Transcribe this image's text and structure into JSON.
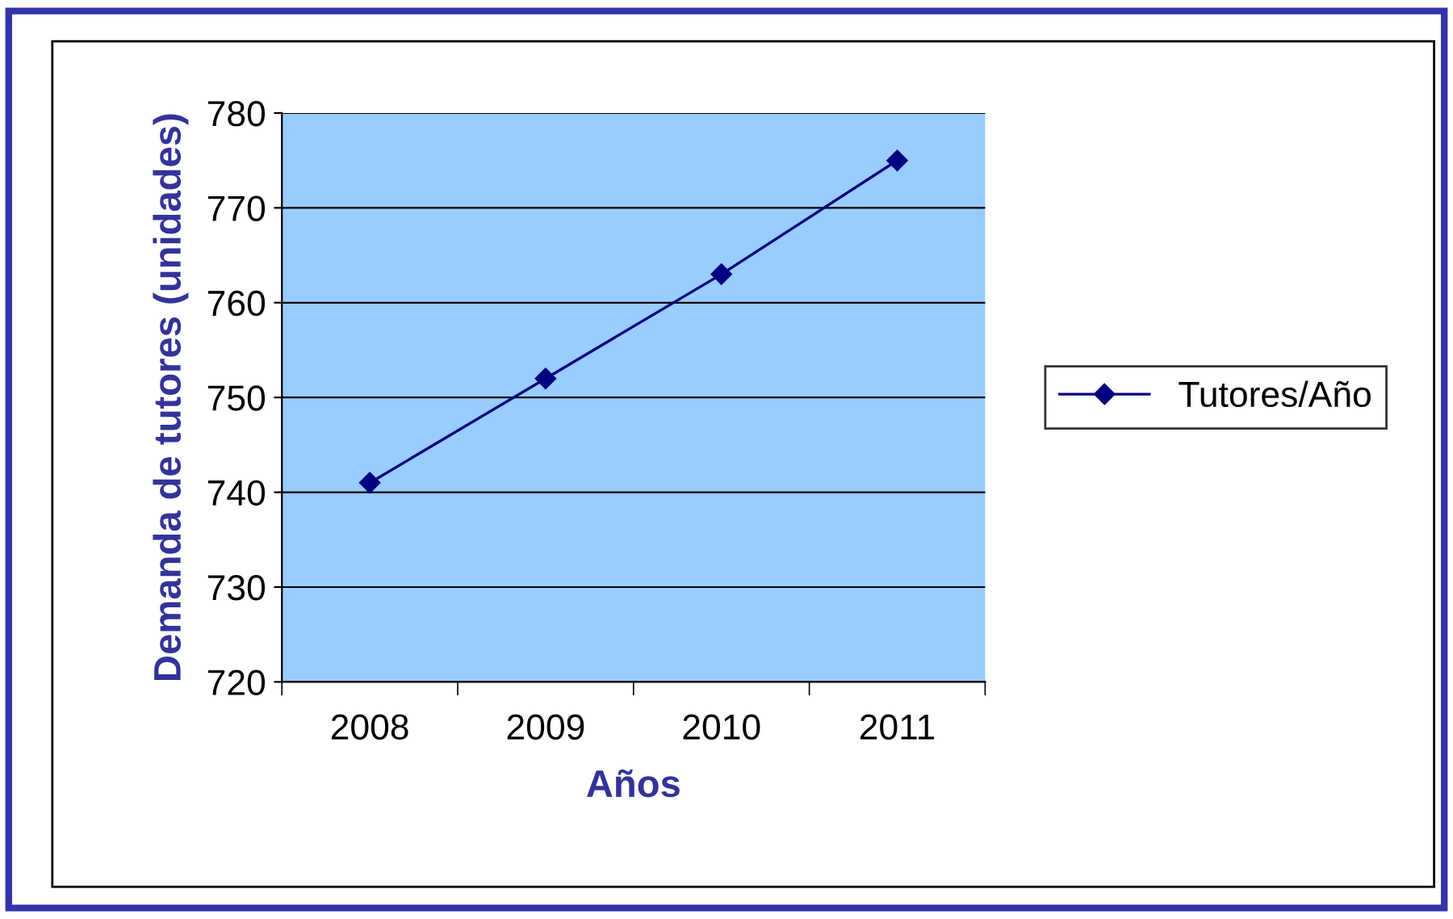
{
  "chart_data": {
    "type": "line",
    "xlabel": "Años",
    "ylabel": "Demanda de tutores (unidades)",
    "categories": [
      "2008",
      "2009",
      "2010",
      "2011"
    ],
    "series": [
      {
        "name": "Tutores/Año",
        "color": "#000080",
        "values": [
          741,
          752,
          763,
          775
        ]
      }
    ],
    "ylim": [
      720,
      780
    ],
    "yticks": [
      720,
      730,
      740,
      750,
      760,
      770,
      780
    ],
    "grid": "y",
    "legend": "right",
    "marker": "diamond",
    "line_style": "solid"
  }
}
